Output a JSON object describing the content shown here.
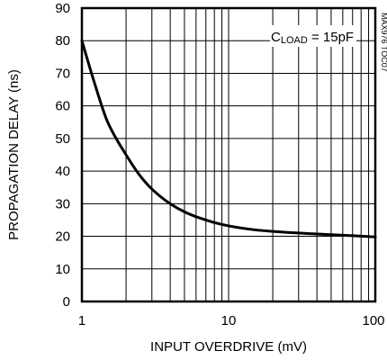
{
  "chart_data": {
    "type": "line",
    "title": "",
    "xlabel": "INPUT OVERDRIVE (mV)",
    "ylabel": "PROPAGATION DELAY (ns)",
    "xscale": "log",
    "xlim": [
      1,
      100
    ],
    "ylim": [
      0,
      90
    ],
    "grid": true,
    "x_tick_labels": [
      "1",
      "10",
      "100"
    ],
    "y_tick_labels": [
      "0",
      "10",
      "20",
      "30",
      "40",
      "50",
      "60",
      "70",
      "80",
      "90"
    ],
    "annotation": {
      "main": "C",
      "subscript": "LOAD",
      "rest": " = 15pF"
    },
    "side_note": "MAX976 TOC07",
    "series": [
      {
        "x": [
          1,
          1.2,
          1.5,
          2,
          2.5,
          3,
          4,
          5,
          6,
          7,
          8,
          10,
          15,
          20,
          30,
          50,
          70,
          100
        ],
        "y": [
          80,
          68,
          55,
          45,
          38.5,
          34.5,
          30,
          27.5,
          26,
          25,
          24.2,
          23.2,
          22,
          21.5,
          21,
          20.5,
          20.2,
          19.8
        ]
      }
    ]
  }
}
